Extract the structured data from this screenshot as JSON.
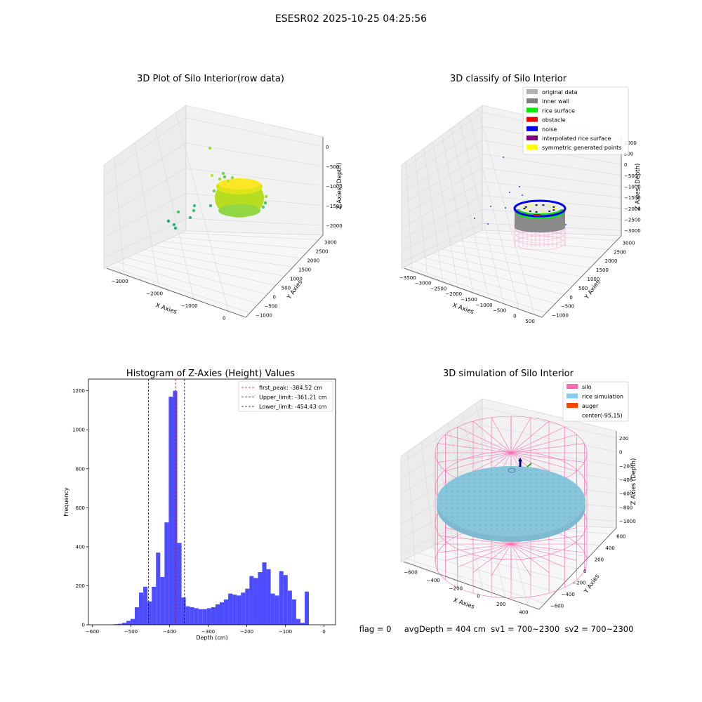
{
  "figure": {
    "suptitle": "ESESR02 2025-10-25 04:25:56",
    "status_text": "flag = 0     avgDepth = 404 cm  sv1 = 700~2300  sv2 = 700~2300"
  },
  "chart_data": [
    {
      "type": "scatter",
      "projection": "3d",
      "title": "3D Plot of Silo Interior(row data)",
      "xlabel": "X Axies",
      "ylabel": "Y Axies",
      "zlabel": "Z Axies (Depth)",
      "x_ticks": [
        "−3000",
        "−2000",
        "−1000",
        "0"
      ],
      "y_ticks": [
        "−1000",
        "−500",
        "0",
        "500",
        "1000",
        "1500",
        "2000",
        "2500",
        "3000"
      ],
      "z_ticks": [
        "0",
        "−500",
        "−1000",
        "−1500",
        "−2000"
      ],
      "xlim": [
        -3500,
        300
      ],
      "ylim": [
        -1000,
        3000
      ],
      "zlim": [
        -2200,
        0
      ],
      "colormap": "viridis",
      "grid": true
    },
    {
      "type": "scatter",
      "projection": "3d",
      "title": "3D classify of Silo Interior",
      "xlabel": "X Axies",
      "ylabel": "Y Axies",
      "zlabel": "Z Axies (Depth)",
      "x_ticks": [
        "−3500",
        "−3000",
        "−2500",
        "−2000",
        "−1500",
        "−1000",
        "−500",
        "0",
        "500"
      ],
      "y_ticks": [
        "−1000",
        "−500",
        "0",
        "500",
        "1000",
        "1500",
        "2000",
        "2500",
        "3000"
      ],
      "z_ticks": [
        "1000",
        "500",
        "0",
        "−500",
        "−1000",
        "−1500",
        "−2000",
        "−2500",
        "−3000"
      ],
      "xlim": [
        -3500,
        500
      ],
      "ylim": [
        -1000,
        3000
      ],
      "zlim": [
        -3000,
        1000
      ],
      "legend_position": "top-right",
      "grid": true,
      "legend": [
        {
          "name": "original data",
          "color": "#b3b3b3"
        },
        {
          "name": "inner wall",
          "color": "#808080"
        },
        {
          "name": "rice surface",
          "color": "#00ee00"
        },
        {
          "name": "obstacle",
          "color": "#ee0000"
        },
        {
          "name": "noise",
          "color": "#0000ee"
        },
        {
          "name": "interpolated rice surface",
          "color": "#800080"
        },
        {
          "name": "symmetric generated points",
          "color": "#ffff00"
        }
      ]
    },
    {
      "type": "bar",
      "title": "Histogram of Z-Axies (Height) Values",
      "xlabel": "Depth (cm)",
      "ylabel": "Frequency",
      "xlim": [
        -610,
        30
      ],
      "ylim": [
        0,
        1260
      ],
      "x_ticks": [
        -600,
        -500,
        -400,
        -300,
        -200,
        -100,
        0
      ],
      "y_ticks": [
        0,
        200,
        400,
        600,
        800,
        1000,
        1200
      ],
      "bar_color": "#4d4dff",
      "bin_width": 11,
      "bins": [
        {
          "start": -545,
          "count": 3
        },
        {
          "start": -534,
          "count": 5
        },
        {
          "start": -523,
          "count": 10
        },
        {
          "start": -512,
          "count": 20
        },
        {
          "start": -501,
          "count": 30
        },
        {
          "start": -490,
          "count": 90
        },
        {
          "start": -479,
          "count": 165
        },
        {
          "start": -468,
          "count": 195
        },
        {
          "start": -457,
          "count": 120
        },
        {
          "start": -446,
          "count": 195
        },
        {
          "start": -435,
          "count": 370
        },
        {
          "start": -424,
          "count": 245
        },
        {
          "start": -413,
          "count": 525
        },
        {
          "start": -402,
          "count": 1170
        },
        {
          "start": -391,
          "count": 1200
        },
        {
          "start": -380,
          "count": 420
        },
        {
          "start": -369,
          "count": 140
        },
        {
          "start": -358,
          "count": 95
        },
        {
          "start": -347,
          "count": 90
        },
        {
          "start": -336,
          "count": 85
        },
        {
          "start": -325,
          "count": 80
        },
        {
          "start": -314,
          "count": 80
        },
        {
          "start": -303,
          "count": 85
        },
        {
          "start": -292,
          "count": 90
        },
        {
          "start": -281,
          "count": 105
        },
        {
          "start": -270,
          "count": 115
        },
        {
          "start": -259,
          "count": 130
        },
        {
          "start": -248,
          "count": 160
        },
        {
          "start": -237,
          "count": 155
        },
        {
          "start": -226,
          "count": 150
        },
        {
          "start": -215,
          "count": 165
        },
        {
          "start": -204,
          "count": 185
        },
        {
          "start": -193,
          "count": 250
        },
        {
          "start": -182,
          "count": 240
        },
        {
          "start": -171,
          "count": 270
        },
        {
          "start": -160,
          "count": 320
        },
        {
          "start": -149,
          "count": 285
        },
        {
          "start": -138,
          "count": 160
        },
        {
          "start": -127,
          "count": 150
        },
        {
          "start": -116,
          "count": 275
        },
        {
          "start": -105,
          "count": 255
        },
        {
          "start": -94,
          "count": 175
        },
        {
          "start": -83,
          "count": 130
        },
        {
          "start": -72,
          "count": 30
        },
        {
          "start": -61,
          "count": 10
        },
        {
          "start": -50,
          "count": 170
        }
      ],
      "vlines": [
        {
          "label": "first_peak: -384.52 cm",
          "x": -384.52,
          "color": "#e00000",
          "style": "dashed"
        },
        {
          "label": "Upper_limit: -361.21 cm",
          "x": -361.21,
          "color": "#00008b",
          "style": "dashed"
        },
        {
          "label": "Lower_limit: -454.43 cm",
          "x": -454.43,
          "color": "#0000cc",
          "style": "dashed"
        }
      ],
      "legend_position": "top-right"
    },
    {
      "type": "surface",
      "projection": "3d",
      "title": "3D simulation of Silo Interior",
      "xlabel": "X Axies",
      "ylabel": "Y Axies",
      "zlabel": "Z Axies (Depth)",
      "x_ticks": [
        "−600",
        "−400",
        "−200",
        "0",
        "200",
        "400"
      ],
      "y_ticks": [
        "−600",
        "−400",
        "−200",
        "0",
        "200",
        "400",
        "600"
      ],
      "z_ticks": [
        "200",
        "0",
        "−200",
        "−400",
        "−600",
        "−800",
        "−1000"
      ],
      "xlim": [
        -700,
        500
      ],
      "ylim": [
        -600,
        600
      ],
      "zlim": [
        -1000,
        300
      ],
      "legend_position": "top-right",
      "grid": true,
      "legend": [
        {
          "name": "silo",
          "color": "#ff69b4"
        },
        {
          "name": "rice simulation",
          "color": "#87ceeb"
        },
        {
          "name": "auger",
          "color": "#ff4500"
        },
        {
          "name": "center(-95,15)",
          "color": "#ffffff"
        }
      ]
    }
  ]
}
